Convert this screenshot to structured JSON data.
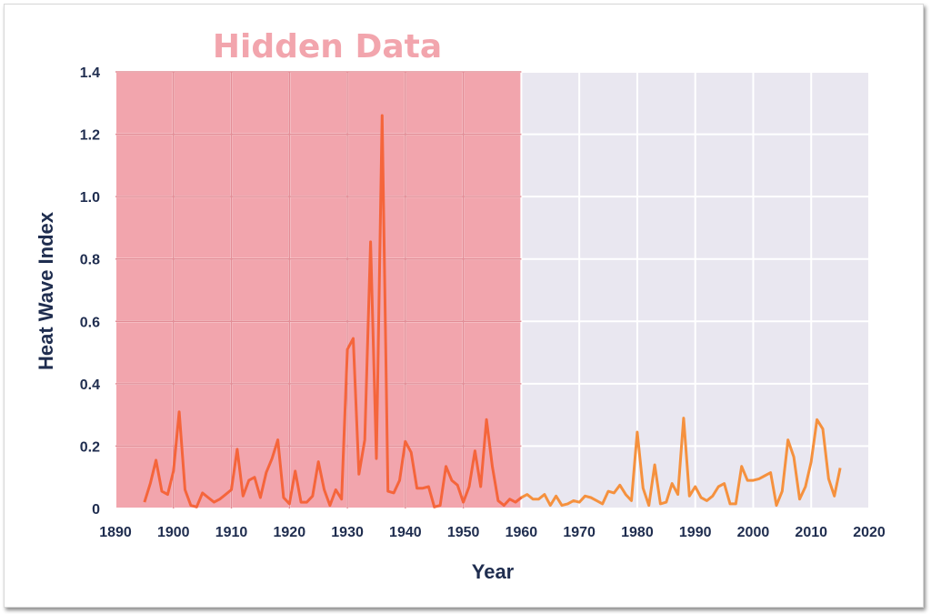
{
  "chart_data": {
    "type": "line",
    "title": "",
    "xlabel": "Year",
    "ylabel": "Heat Wave Index",
    "xlim": [
      1890,
      2020
    ],
    "ylim": [
      0,
      1.4
    ],
    "xticks": [
      1890,
      1900,
      1910,
      1920,
      1930,
      1940,
      1950,
      1960,
      1970,
      1980,
      1990,
      2000,
      2010,
      2020
    ],
    "yticks": [
      0,
      0.2,
      0.4,
      0.6,
      0.8,
      1.0,
      1.2,
      1.4
    ],
    "ytick_labels": [
      "0",
      "0.2",
      "0.4",
      "0.6",
      "0.8",
      "1.0",
      "1.2",
      "1.4"
    ],
    "grid": true,
    "annotation": {
      "text": "Hidden Data",
      "color": "#f2a5ad",
      "region_x": [
        1890,
        1960
      ],
      "region_color": "#f2a5ad"
    },
    "background_color": "#e9e7f0",
    "series": [
      {
        "color_hidden": "#f5653b",
        "color_visible": "#f5913e",
        "x": [
          1895,
          1896,
          1897,
          1898,
          1899,
          1900,
          1901,
          1902,
          1903,
          1904,
          1905,
          1906,
          1907,
          1908,
          1909,
          1910,
          1911,
          1912,
          1913,
          1914,
          1915,
          1916,
          1917,
          1918,
          1919,
          1920,
          1921,
          1922,
          1923,
          1924,
          1925,
          1926,
          1927,
          1928,
          1929,
          1930,
          1931,
          1932,
          1933,
          1934,
          1935,
          1936,
          1937,
          1938,
          1939,
          1940,
          1941,
          1942,
          1943,
          1944,
          1945,
          1946,
          1947,
          1948,
          1949,
          1950,
          1951,
          1952,
          1953,
          1954,
          1955,
          1956,
          1957,
          1958,
          1959,
          1960,
          1961,
          1962,
          1963,
          1964,
          1965,
          1966,
          1967,
          1968,
          1969,
          1970,
          1971,
          1972,
          1973,
          1974,
          1975,
          1976,
          1977,
          1978,
          1979,
          1980,
          1981,
          1982,
          1983,
          1984,
          1985,
          1986,
          1987,
          1988,
          1989,
          1990,
          1991,
          1992,
          1993,
          1994,
          1995,
          1996,
          1997,
          1998,
          1999,
          2000,
          2001,
          2002,
          2003,
          2004,
          2005,
          2006,
          2007,
          2008,
          2009,
          2010,
          2011,
          2012,
          2013,
          2014,
          2015
        ],
        "values": [
          0.02,
          0.08,
          0.155,
          0.055,
          0.045,
          0.12,
          0.31,
          0.06,
          0.01,
          0.005,
          0.05,
          0.035,
          0.02,
          0.03,
          0.045,
          0.06,
          0.19,
          0.04,
          0.09,
          0.1,
          0.035,
          0.115,
          0.16,
          0.22,
          0.035,
          0.015,
          0.12,
          0.02,
          0.02,
          0.04,
          0.15,
          0.06,
          0.01,
          0.06,
          0.03,
          0.51,
          0.545,
          0.11,
          0.22,
          0.855,
          0.16,
          1.26,
          0.055,
          0.05,
          0.09,
          0.215,
          0.18,
          0.065,
          0.065,
          0.07,
          0.005,
          0.01,
          0.135,
          0.09,
          0.075,
          0.02,
          0.07,
          0.185,
          0.07,
          0.285,
          0.135,
          0.025,
          0.01,
          0.03,
          0.02,
          0.035,
          0.045,
          0.03,
          0.03,
          0.045,
          0.01,
          0.04,
          0.01,
          0.015,
          0.025,
          0.02,
          0.04,
          0.035,
          0.025,
          0.015,
          0.055,
          0.05,
          0.075,
          0.045,
          0.025,
          0.245,
          0.065,
          0.01,
          0.14,
          0.015,
          0.02,
          0.08,
          0.045,
          0.29,
          0.04,
          0.07,
          0.035,
          0.025,
          0.04,
          0.07,
          0.08,
          0.015,
          0.015,
          0.135,
          0.09,
          0.09,
          0.095,
          0.105,
          0.115,
          0.01,
          0.055,
          0.22,
          0.165,
          0.03,
          0.07,
          0.15,
          0.285,
          0.255,
          0.095,
          0.04,
          0.13
        ]
      }
    ]
  }
}
